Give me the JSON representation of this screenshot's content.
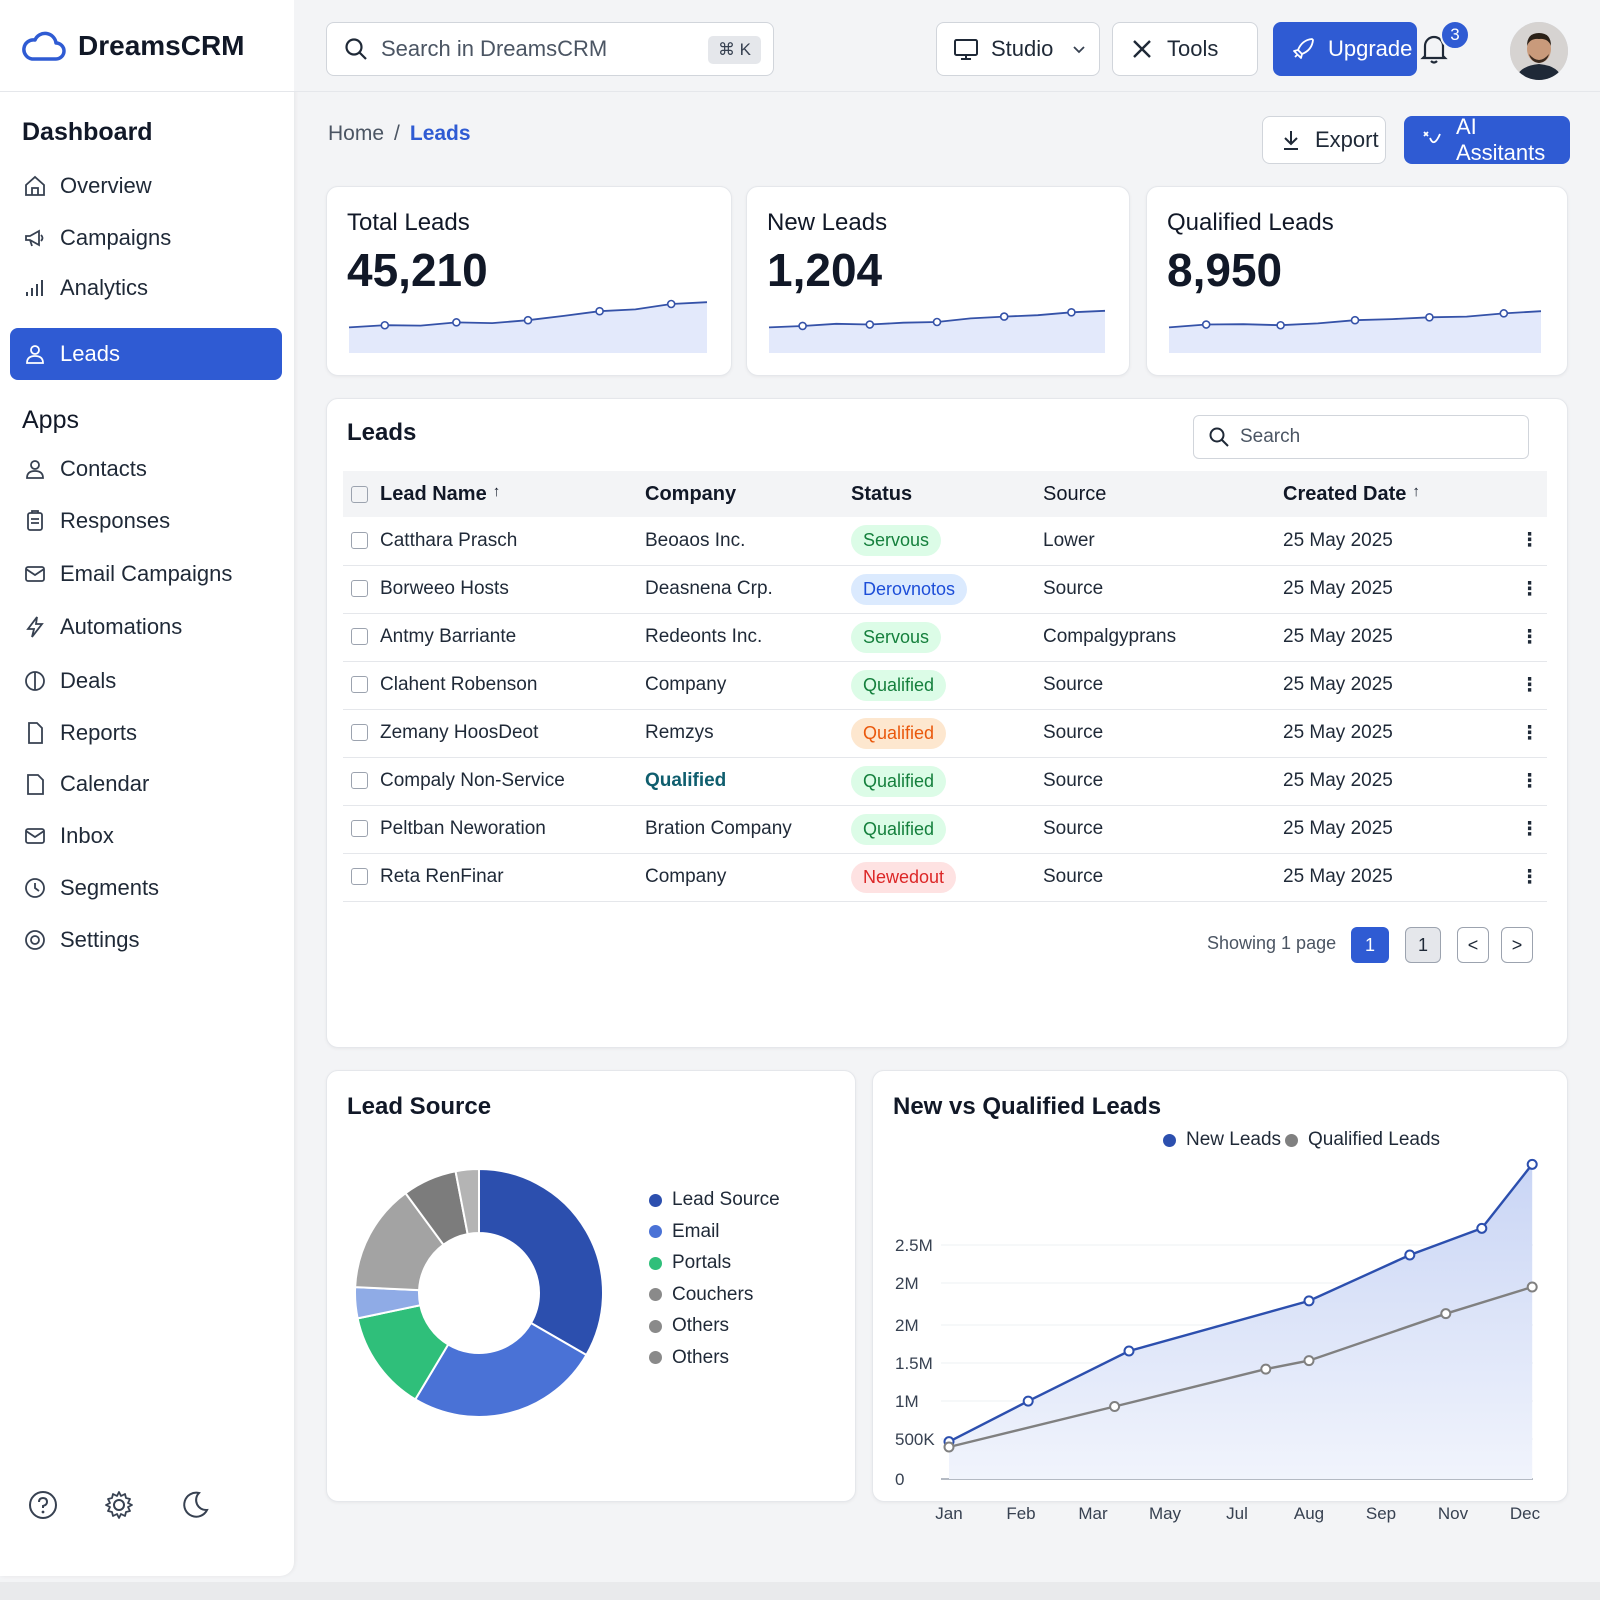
{
  "app": {
    "name": "DreamsCRM"
  },
  "sidebar": {
    "section_dashboard": "Dashboard",
    "section_apps": "Apps",
    "dashboard_items": [
      {
        "label": "Overview",
        "icon": "home-icon"
      },
      {
        "label": "Campaigns",
        "icon": "megaphone-icon"
      },
      {
        "label": "Analytics",
        "icon": "bar-chart-icon"
      },
      {
        "label": "Leads",
        "icon": "user-icon",
        "active": true
      }
    ],
    "app_items": [
      {
        "label": "Contacts",
        "icon": "user-icon"
      },
      {
        "label": "Responses",
        "icon": "clipboard-icon"
      },
      {
        "label": "Email Campaigns",
        "icon": "mail-icon"
      },
      {
        "label": "Automations",
        "icon": "bolt-icon"
      },
      {
        "label": "Deals",
        "icon": "pie-icon"
      },
      {
        "label": "Reports",
        "icon": "file-icon"
      },
      {
        "label": "Calendar",
        "icon": "calendar-icon"
      },
      {
        "label": "Inbox",
        "icon": "mail-icon"
      },
      {
        "label": "Segments",
        "icon": "clock-icon"
      },
      {
        "label": "Settings",
        "icon": "target-icon"
      }
    ]
  },
  "topbar": {
    "search_placeholder": "Search in DreamsCRM",
    "search_shortcut": "⌘ K",
    "studio_label": "Studio",
    "tools_label": "Tools",
    "upgrade_label": "Upgrade",
    "notification_count": "3"
  },
  "breadcrumb": {
    "home": "Home",
    "separator": "/",
    "current": "Leads"
  },
  "actions": {
    "export_label": "Export",
    "ai_label": "AI Assitants"
  },
  "kpis": [
    {
      "label": "Total Leads",
      "value": "45,210",
      "trend": [
        10,
        16,
        15,
        24,
        22,
        30,
        42,
        55,
        60,
        75,
        80
      ]
    },
    {
      "label": "New Leads",
      "value": "1,204",
      "trend": [
        10,
        14,
        20,
        18,
        23,
        25,
        35,
        40,
        44,
        52,
        56
      ]
    },
    {
      "label": "Qualified Leads",
      "value": "8,950",
      "trend": [
        10,
        18,
        19,
        16,
        21,
        30,
        33,
        38,
        40,
        49,
        55
      ]
    }
  ],
  "leads": {
    "title": "Leads",
    "search_placeholder": "Search",
    "columns": [
      "Lead Name",
      "Company",
      "Status",
      "Source",
      "Created Date"
    ],
    "rows": [
      {
        "name": "Catthara Prasch",
        "company": "Beoaos Inc.",
        "status": "Servous",
        "status_color": "green",
        "source": "Lower",
        "date": "25 May 2025"
      },
      {
        "name": "Borweeo Hosts",
        "company": "Deasnena Crp.",
        "status": "Derovnotos",
        "status_color": "blue",
        "source": "Source",
        "date": "25 May 2025"
      },
      {
        "name": "Antmy Barriante",
        "company": "Redeonts Inc.",
        "status": "Servous",
        "status_color": "green",
        "source": "Compalgyprans",
        "date": "25 May 2025"
      },
      {
        "name": "Clahent Robenson",
        "company": "Company",
        "status": "Qualified",
        "status_color": "green",
        "source": "Source",
        "date": "25 May 2025"
      },
      {
        "name": "Zemany HoosDeot",
        "company": "Remzys",
        "status": "Qualified",
        "status_color": "orange",
        "source": "Source",
        "date": "25 May 2025"
      },
      {
        "name": "Compaly Non-Service",
        "company": "Qualified",
        "company_link": true,
        "status": "Qualified",
        "status_color": "green",
        "source": "Source",
        "date": "25 May 2025"
      },
      {
        "name": "Peltban Neworation",
        "company": "Bration Company",
        "status": "Qualified",
        "status_color": "green",
        "source": "Source",
        "date": "25 May 2025"
      },
      {
        "name": "Reta RenFinar",
        "company": "Company",
        "status": "Newedout",
        "status_color": "red",
        "source": "Source",
        "date": "25 May 2025"
      }
    ],
    "pagination": {
      "info": "Showing 1 page",
      "current": "1",
      "other": "1",
      "prev": "<",
      "next": ">"
    }
  },
  "lead_source": {
    "title": "Lead Source",
    "legend": [
      {
        "label": "Lead Source",
        "color": "#2c4fae"
      },
      {
        "label": "Email",
        "color": "#4a72d6"
      },
      {
        "label": "Portals",
        "color": "#2fbf7a"
      },
      {
        "label": "Couchers",
        "color": "#8a8a8a"
      },
      {
        "label": "Others",
        "color": "#8a8a8a"
      },
      {
        "label": "Others",
        "color": "#8a8a8a"
      }
    ]
  },
  "chart_data": [
    {
      "type": "pie",
      "title": "Lead Source",
      "slices": [
        {
          "label": "Lead Source",
          "value": 33,
          "color": "#2c4fae"
        },
        {
          "label": "Email",
          "value": 25,
          "color": "#4a72d6"
        },
        {
          "label": "Portals",
          "value": 13,
          "color": "#2fbf7a"
        },
        {
          "label": "",
          "value": 4,
          "color": "#8fabe6"
        },
        {
          "label": "Couchers",
          "value": 14,
          "color": "#a3a3a3"
        },
        {
          "label": "Others",
          "value": 7,
          "color": "#7c7c7c"
        },
        {
          "label": "Others",
          "value": 3,
          "color": "#b4b4b4"
        }
      ]
    },
    {
      "type": "area",
      "title": "New vs Qualified Leads",
      "categories": [
        "Jan",
        "Feb",
        "Mar",
        "May",
        "Jul",
        "Aug",
        "Sep",
        "Nov",
        "Dec"
      ],
      "y_tick_labels": [
        "0",
        "500K",
        "1M",
        "1.5M",
        "2M",
        "2M",
        "2.5M"
      ],
      "ylim": [
        0,
        3000000
      ],
      "series": [
        {
          "name": "New Leads",
          "color": "#2c4fae",
          "points": [
            [
              0,
              350000
            ],
            [
              1.1,
              730000
            ],
            [
              2.5,
              1200000
            ],
            [
              5,
              1670000
            ],
            [
              6.4,
              2100000
            ],
            [
              7.4,
              2350000
            ],
            [
              8.1,
              2950000
            ]
          ]
        },
        {
          "name": "Qualified Leads",
          "color": "#808080",
          "points": [
            [
              0,
              300000
            ],
            [
              2.3,
              680000
            ],
            [
              4.4,
              1030000
            ],
            [
              5,
              1110000
            ],
            [
              6.9,
              1550000
            ],
            [
              8.1,
              1800000
            ]
          ]
        }
      ]
    }
  ]
}
